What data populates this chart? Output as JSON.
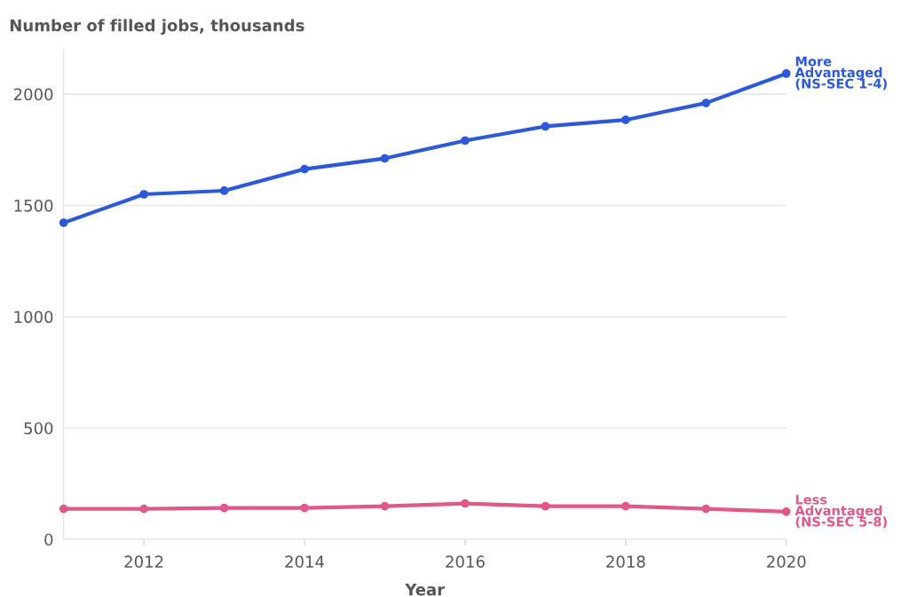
{
  "chart_data": {
    "type": "line",
    "title": "Number of filled jobs, thousands",
    "xlabel": "Year",
    "x": [
      2011,
      2012,
      2013,
      2014,
      2015,
      2016,
      2017,
      2018,
      2019,
      2020
    ],
    "series": [
      {
        "name": "More\nAdvantaged\n(NS-SEC 1-4)",
        "color": "#2b59d9",
        "values": [
          1422,
          1550,
          1566,
          1663,
          1711,
          1791,
          1855,
          1884,
          1960,
          2092
        ]
      },
      {
        "name": "Less\nAdvantaged\n(NS-SEC 5-8)",
        "color": "#e0578a",
        "values": [
          137,
          137,
          141,
          141,
          149,
          161,
          149,
          149,
          137,
          124
        ]
      }
    ],
    "xlim": [
      2011,
      2020
    ],
    "xticks": [
      2012,
      2014,
      2016,
      2018,
      2020
    ],
    "ylim": [
      0,
      2200
    ],
    "yticks": [
      0,
      500,
      1000,
      1500,
      2000
    ],
    "grid": "y",
    "legend": false,
    "marker": "circle",
    "line_style": "solid"
  }
}
